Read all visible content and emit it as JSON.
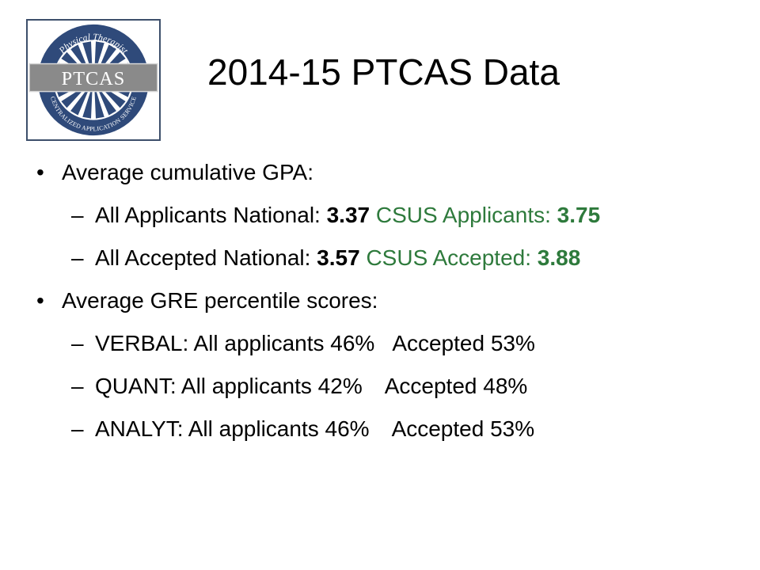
{
  "slide": {
    "title": "2014-15 PTCAS Data",
    "logo": {
      "top_arc": "Physical Therapist",
      "banner": "PTCAS",
      "bottom_arc": "CENTRALIZED APPLICATION SERVICE"
    },
    "bullets": [
      {
        "marker": "•",
        "text": "Average cumulative GPA:",
        "subs": [
          {
            "marker": "–",
            "label1": "All Applicants National: ",
            "value1": "3.37",
            "label2": " CSUS Applicants: ",
            "value2": "3.75"
          },
          {
            "marker": "–",
            "label1": "All Accepted National: ",
            "value1": "3.57",
            "label2": " CSUS Accepted: ",
            "value2": "3.88"
          }
        ]
      },
      {
        "marker": "•",
        "text": "Average GRE percentile scores:",
        "subs": [
          {
            "marker": "–",
            "left": "VERBAL: All applicants 46%",
            "right": "Accepted 53%"
          },
          {
            "marker": "–",
            "left": "QUANT: All applicants 42%",
            "right": "Accepted 48%"
          },
          {
            "marker": "–",
            "left": "ANALYT: All applicants 46%",
            "right": "Accepted  53%"
          }
        ]
      }
    ],
    "colors": {
      "accent_green": "#2e7a3c",
      "logo_navy": "#2f4a7a",
      "logo_banner": "#8a8a8a"
    }
  }
}
